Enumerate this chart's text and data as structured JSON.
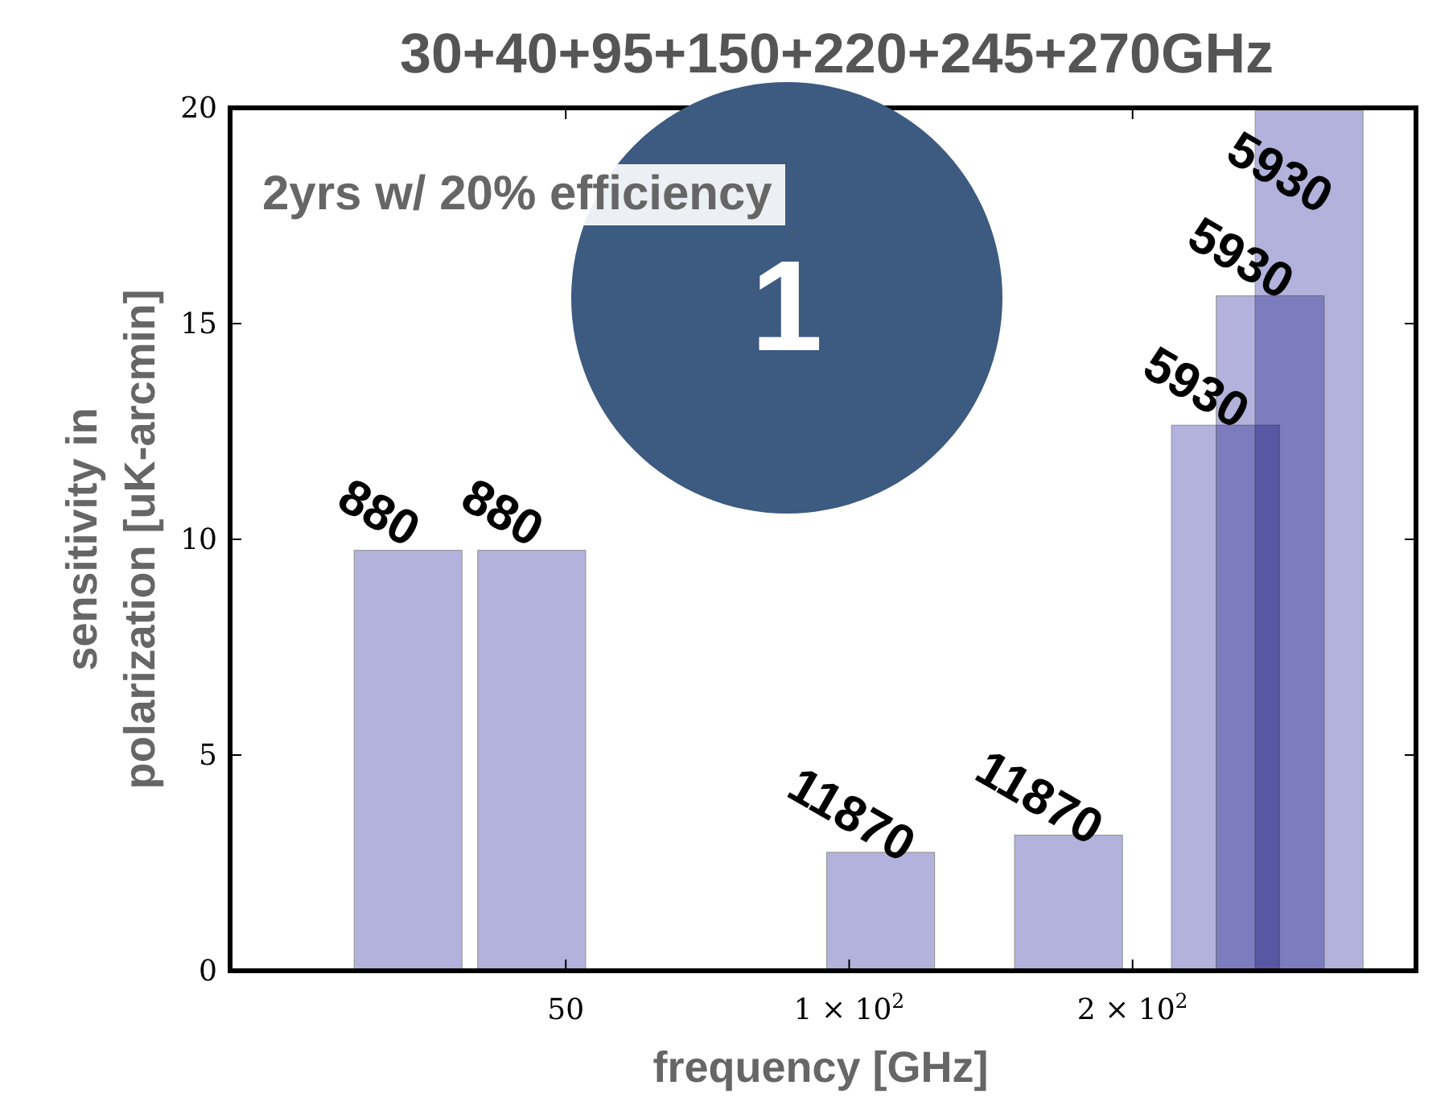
{
  "chart_data": {
    "type": "bar",
    "title": "30+40+95+150+220+245+270GHz",
    "xlabel": "frequency [GHz]",
    "ylabel": "sensitivity in\npolarization [uK-arcmin]",
    "x": [
      34,
      46,
      108,
      171,
      251,
      280,
      308
    ],
    "values": [
      9.8,
      9.8,
      2.8,
      3.2,
      12.7,
      15.7,
      20
    ],
    "color": "#b2b2dc",
    "log": "x",
    "xlim": [
      22,
      400
    ],
    "xticks": [
      50,
      {
        "value": 100,
        "label": "1 × 10$^{2}$"
      },
      {
        "value": 200,
        "label": "2 × 10$^{2}$"
      }
    ],
    "ylim": [
      0,
      20
    ],
    "yticks": [
      0,
      5,
      10,
      15,
      20
    ],
    "annotations": [
      "2yrs w/ 20% efficiency",
      "1",
      {
        "text": "880",
        "x": 34,
        "y": 9.8
      },
      {
        "text": "880",
        "x": 46,
        "y": 9.8
      },
      {
        "text": "11870",
        "x": 108,
        "y": 2.8
      },
      {
        "text": "11870",
        "x": 171,
        "y": 3.2
      },
      {
        "text": "5930",
        "x": 251,
        "y": 12.7
      },
      {
        "text": "5930",
        "x": 280,
        "y": 15.7
      },
      {
        "text": "5930",
        "x": 308,
        "y": 20
      }
    ]
  }
}
